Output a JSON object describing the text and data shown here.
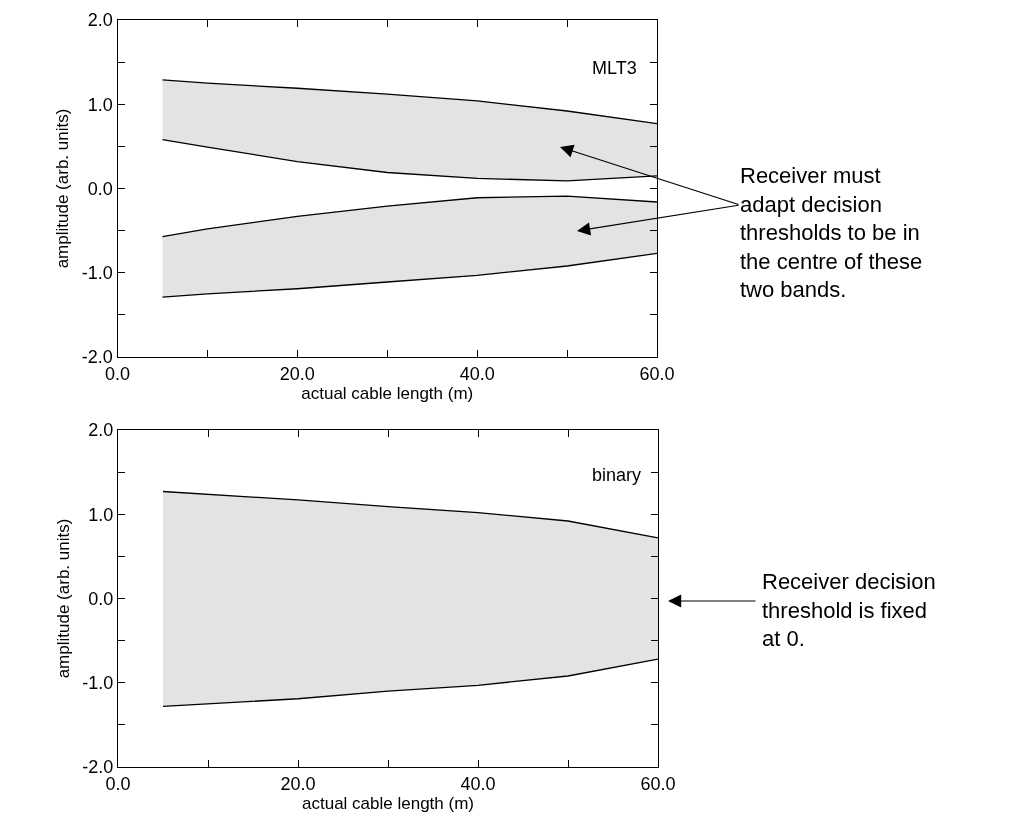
{
  "chart_data": [
    {
      "type": "line",
      "xlabel": "actual cable length (m)",
      "ylabel": "amplitude (arb. units)",
      "x": [
        5,
        10,
        20,
        30,
        40,
        50,
        60
      ],
      "series": [
        {
          "color": "#000000",
          "values": [
            1.29,
            1.25,
            1.19,
            1.12,
            1.04,
            0.92,
            0.77
          ],
          "upper": [
            1.29,
            1.25,
            1.19,
            1.12,
            1.04,
            0.92,
            0.77
          ],
          "lower": [
            0.58,
            0.49,
            0.32,
            0.19,
            0.12,
            0.09,
            0.15
          ]
        },
        {
          "color": "#000000",
          "values": [
            0.58,
            0.49,
            0.32,
            0.19,
            0.12,
            0.09,
            0.15
          ]
        },
        {
          "color": "#000000",
          "values": [
            -0.57,
            -0.48,
            -0.33,
            -0.21,
            -0.11,
            -0.09,
            -0.16
          ],
          "upper": [
            -0.57,
            -0.48,
            -0.33,
            -0.21,
            -0.11,
            -0.09,
            -0.16
          ],
          "lower": [
            -1.29,
            -1.25,
            -1.19,
            -1.11,
            -1.03,
            -0.92,
            -0.77
          ]
        },
        {
          "color": "#000000",
          "values": [
            -1.29,
            -1.25,
            -1.19,
            -1.11,
            -1.03,
            -0.92,
            -0.77
          ]
        }
      ],
      "xlim": [
        0,
        60
      ],
      "ylim": [
        -2,
        2
      ],
      "xticks": [
        {
          "value": 0,
          "label": "0.0"
        },
        {
          "value": 10,
          "label": null
        },
        {
          "value": 20,
          "label": "20.0"
        },
        {
          "value": 30,
          "label": null
        },
        {
          "value": 40,
          "label": "40.0"
        },
        {
          "value": 50,
          "label": null
        },
        {
          "value": 60,
          "label": "60.0"
        }
      ],
      "yticks": [
        {
          "value": -2,
          "label": "-2.0"
        },
        {
          "value": -1.5,
          "label": null
        },
        {
          "value": -1,
          "label": "-1.0"
        },
        {
          "value": -0.5,
          "label": null
        },
        {
          "value": 0,
          "label": "0.0"
        },
        {
          "value": 0.5,
          "label": null
        },
        {
          "value": 1,
          "label": "1.0"
        },
        {
          "value": 1.5,
          "label": null
        },
        {
          "value": 2,
          "label": "2.0"
        }
      ],
      "annotations": [
        "MLT3",
        "Receiver must\nadapt decision\nthresholds to be in\nthe centre of these\ntwo bands."
      ]
    },
    {
      "type": "line",
      "xlabel": "actual cable length (m)",
      "ylabel": "amplitude (arb. units)",
      "x": [
        5,
        20,
        30,
        40,
        50,
        60
      ],
      "series": [
        {
          "color": "#000000",
          "values": [
            1.27,
            1.17,
            1.09,
            1.02,
            0.92,
            0.72
          ],
          "upper": [
            1.27,
            1.17,
            1.09,
            1.02,
            0.92,
            0.72
          ],
          "lower": [
            -1.28,
            -1.19,
            -1.1,
            -1.03,
            -0.92,
            -0.72
          ]
        },
        {
          "color": "#000000",
          "values": [
            -1.28,
            -1.19,
            -1.1,
            -1.03,
            -0.92,
            -0.72
          ]
        }
      ],
      "xlim": [
        0,
        60
      ],
      "ylim": [
        -2,
        2
      ],
      "xticks": [
        {
          "value": 0,
          "label": "0.0"
        },
        {
          "value": 10,
          "label": null
        },
        {
          "value": 20,
          "label": "20.0"
        },
        {
          "value": 30,
          "label": null
        },
        {
          "value": 40,
          "label": "40.0"
        },
        {
          "value": 50,
          "label": null
        },
        {
          "value": 60,
          "label": "60.0"
        }
      ],
      "yticks": [
        {
          "value": -2,
          "label": "-2.0"
        },
        {
          "value": -1.5,
          "label": null
        },
        {
          "value": -1,
          "label": "-1.0"
        },
        {
          "value": -0.5,
          "label": null
        },
        {
          "value": 0,
          "label": "0.0"
        },
        {
          "value": 0.5,
          "label": null
        },
        {
          "value": 1,
          "label": "1.0"
        },
        {
          "value": 1.5,
          "label": null
        },
        {
          "value": 2,
          "label": "2.0"
        }
      ],
      "annotations": [
        "binary",
        "Receiver decision\nthreshold is fixed\nat 0."
      ]
    }
  ]
}
